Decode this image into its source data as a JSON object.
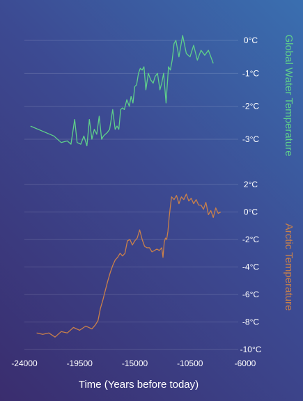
{
  "chart_data": [
    {
      "type": "line",
      "ylabel": "Global Water Temperature",
      "color": "#5fd08a",
      "yticks": [
        0,
        -1,
        -2,
        -3
      ],
      "ytick_labels": [
        "0°C",
        "-1°C",
        "-2°C",
        "-3°C"
      ],
      "ylim": [
        -3.4,
        0.25
      ],
      "grid": true,
      "series": [
        {
          "x": [
            -23500,
            -21600,
            -21000,
            -20500,
            -20200,
            -19900,
            -19700,
            -19400,
            -19150,
            -18900,
            -18700,
            -18500,
            -18300,
            -18100,
            -17900,
            -17700,
            -17550,
            -17400,
            -17250,
            -17050,
            -16800,
            -16600,
            -16450,
            -16300,
            -16150,
            -16000,
            -15850,
            -15650,
            -15450,
            -15300,
            -15150,
            -15000,
            -14850,
            -14700,
            -14550,
            -14400,
            -14250,
            -14100,
            -13900,
            -13700,
            -13500,
            -13350,
            -13150,
            -12950,
            -12800,
            -12650,
            -12450,
            -12250,
            -12100,
            -11950,
            -11800,
            -11650,
            -11400,
            -11100,
            -10800,
            -10500,
            -10200,
            -9900,
            -9600,
            -9300,
            -9000,
            -8600
          ],
          "y": [
            -2.6,
            -2.9,
            -3.1,
            -3.05,
            -3.15,
            -2.4,
            -3.1,
            -3.15,
            -2.9,
            -3.2,
            -2.4,
            -3.0,
            -2.7,
            -2.85,
            -2.3,
            -3.0,
            -2.9,
            -2.85,
            -2.8,
            -2.7,
            -2.1,
            -2.7,
            -2.6,
            -2.7,
            -2.1,
            -2.05,
            -2.1,
            -1.8,
            -2.0,
            -1.7,
            -1.9,
            -1.4,
            -1.35,
            -1.0,
            -0.85,
            -0.9,
            -0.8,
            -1.5,
            -1.0,
            -1.2,
            -1.3,
            -1.1,
            -1.0,
            -1.5,
            -1.3,
            -1.0,
            -1.9,
            -0.8,
            -0.9,
            -0.6,
            -0.1,
            0.0,
            -0.5,
            0.15,
            -0.4,
            -0.5,
            -0.15,
            -0.6,
            -0.3,
            -0.45,
            -0.3,
            -0.7
          ]
        }
      ]
    },
    {
      "type": "line",
      "ylabel": "Arctic Temperature",
      "color": "#c9804a",
      "yticks": [
        2,
        0,
        -2,
        -4,
        -6,
        -8,
        -10
      ],
      "ytick_labels": [
        "2°C",
        "0°C",
        "-2°C",
        "-4°C",
        "-6°C",
        "-8°C",
        "-10°C"
      ],
      "ylim": [
        -10,
        2
      ],
      "grid": true,
      "xlabel": "Time (Years before today)",
      "xticks": [
        -24000,
        -19500,
        -15000,
        -10500,
        -6000
      ],
      "xtick_labels": [
        "-24000",
        "-19500",
        "-15000",
        "-10500",
        "-6000"
      ],
      "xlim": [
        -24000,
        -6000
      ],
      "series": [
        {
          "x": [
            -23000,
            -22500,
            -22000,
            -21500,
            -21000,
            -20500,
            -20000,
            -19500,
            -19000,
            -18500,
            -18200,
            -18000,
            -17800,
            -17600,
            -17400,
            -17200,
            -17000,
            -16800,
            -16600,
            -16400,
            -16200,
            -16000,
            -15800,
            -15600,
            -15400,
            -15200,
            -15000,
            -14800,
            -14600,
            -14400,
            -14200,
            -14000,
            -13800,
            -13600,
            -13400,
            -13200,
            -13000,
            -12800,
            -12700,
            -12600,
            -12500,
            -12400,
            -12300,
            -12200,
            -12100,
            -12000,
            -11800,
            -11600,
            -11400,
            -11200,
            -11000,
            -10800,
            -10600,
            -10400,
            -10200,
            -10000,
            -9800,
            -9600,
            -9400,
            -9200,
            -9000,
            -8800,
            -8600,
            -8400,
            -8200,
            -8000
          ],
          "y": [
            -8.8,
            -8.9,
            -8.8,
            -9.1,
            -8.7,
            -8.8,
            -8.4,
            -8.6,
            -8.3,
            -8.5,
            -8.2,
            -7.9,
            -7.0,
            -6.4,
            -5.7,
            -5.0,
            -4.4,
            -3.9,
            -3.5,
            -3.3,
            -3.0,
            -3.2,
            -3.0,
            -2.1,
            -2.0,
            -2.4,
            -2.1,
            -1.9,
            -1.3,
            -2.0,
            -2.5,
            -2.6,
            -2.6,
            -2.9,
            -2.8,
            -2.7,
            -2.8,
            -2.6,
            -3.3,
            -2.2,
            -1.9,
            -2.0,
            -1.4,
            -0.4,
            0.4,
            1.1,
            0.9,
            1.2,
            0.6,
            1.1,
            0.9,
            1.3,
            0.8,
            1.0,
            0.6,
            0.9,
            0.5,
            0.5,
            0.2,
            0.7,
            -0.2,
            0.1,
            -0.4,
            0.3,
            -0.1,
            0.0
          ]
        }
      ]
    }
  ]
}
